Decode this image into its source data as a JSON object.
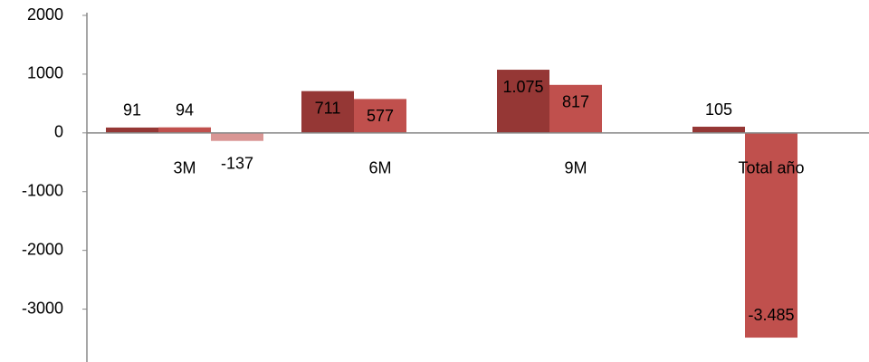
{
  "chart_data": {
    "type": "bar",
    "categories": [
      "3M",
      "6M",
      "9M",
      "Total año"
    ],
    "series": [
      {
        "color": "#953735",
        "values": [
          91,
          711,
          1075,
          105
        ],
        "value_labels": [
          "91",
          "711",
          "1.075",
          "105"
        ]
      },
      {
        "color": "#c0504d",
        "values": [
          94,
          577,
          817,
          -3485
        ],
        "value_labels": [
          "94",
          "577",
          "817",
          "-3.485"
        ]
      },
      {
        "color": "#d99694",
        "values": [
          -137,
          null,
          null,
          null
        ],
        "value_labels": [
          "-137",
          null,
          null,
          null
        ]
      }
    ],
    "ylim": [
      -3900,
      2000
    ],
    "yticks": [
      2000,
      1000,
      0,
      -1000,
      -2000,
      -3000
    ]
  }
}
